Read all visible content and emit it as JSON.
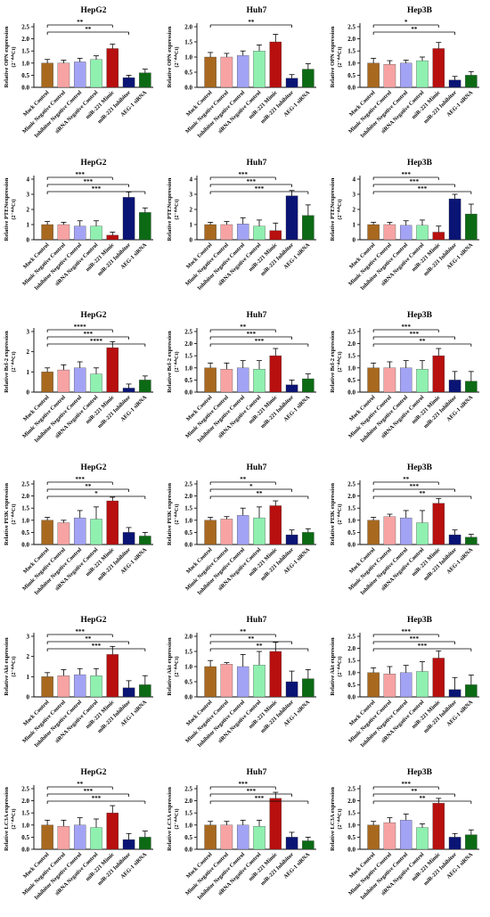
{
  "colors": [
    "#a8691f",
    "#f7a3a3",
    "#a3a3f5",
    "#8ff0b0",
    "#b80f0f",
    "#0a1475",
    "#0c6a14"
  ],
  "categories": [
    "Mock Control",
    "Mimic Negative Control",
    "Inhibitor Negative Control",
    "siRNA Negative Control",
    "miR-221 Mimic",
    "miR-221 Inhibitor",
    "AEG-1 siRNA"
  ],
  "ylabel_suffix": "(2⁻ᐞᐞCt)",
  "rows": [
    {
      "ylabel": "Relative OPN expression",
      "charts": [
        {
          "title": "HepG2",
          "yticks": [
            "0.0",
            "0.5",
            "1.0",
            "1.5",
            "2.0",
            "2.5"
          ],
          "ylim": [
            0,
            2.5
          ],
          "values": [
            1.0,
            1.0,
            1.05,
            1.15,
            1.6,
            0.4,
            0.6
          ],
          "errors": [
            0.15,
            0.12,
            0.15,
            0.15,
            0.18,
            0.1,
            0.15
          ],
          "sig": [
            {
              "from": 0,
              "to": 4,
              "label": "**"
            },
            {
              "from": 0,
              "to": 5,
              "label": "**"
            }
          ]
        },
        {
          "title": "Huh7",
          "yticks": [
            "0.0",
            "0.5",
            "1.0",
            "1.5",
            "2.0"
          ],
          "ylim": [
            0,
            2.0
          ],
          "values": [
            1.0,
            1.0,
            1.05,
            1.2,
            1.5,
            0.3,
            0.6
          ],
          "errors": [
            0.15,
            0.12,
            0.15,
            0.2,
            0.25,
            0.12,
            0.18
          ],
          "sig": [
            {
              "from": 0,
              "to": 5,
              "label": "**"
            }
          ]
        },
        {
          "title": "Hep3B",
          "yticks": [
            "0.0",
            "0.5",
            "1.0",
            "1.5",
            "2.0",
            "2.5"
          ],
          "ylim": [
            0,
            2.5
          ],
          "values": [
            1.0,
            0.95,
            1.0,
            1.1,
            1.6,
            0.3,
            0.5
          ],
          "errors": [
            0.2,
            0.15,
            0.12,
            0.15,
            0.25,
            0.15,
            0.15
          ],
          "sig": [
            {
              "from": 0,
              "to": 4,
              "label": "*"
            },
            {
              "from": 0,
              "to": 5,
              "label": "**"
            }
          ]
        }
      ]
    },
    {
      "ylabel": "Relative PTENexpression",
      "charts": [
        {
          "title": "HepG2",
          "yticks": [
            "0",
            "1",
            "2",
            "3",
            "4"
          ],
          "ylim": [
            0,
            4
          ],
          "values": [
            1.0,
            1.0,
            0.9,
            0.9,
            0.3,
            2.8,
            1.8
          ],
          "errors": [
            0.2,
            0.15,
            0.35,
            0.35,
            0.2,
            0.35,
            0.3
          ],
          "sig": [
            {
              "from": 0,
              "to": 4,
              "label": "***"
            },
            {
              "from": 0,
              "to": 5,
              "label": "***"
            },
            {
              "from": 0,
              "to": 6,
              "label": "***"
            }
          ]
        },
        {
          "title": "Huh7",
          "yticks": [
            "0",
            "1",
            "2",
            "3",
            "4"
          ],
          "ylim": [
            0,
            4
          ],
          "values": [
            1.0,
            1.0,
            1.05,
            0.9,
            0.6,
            2.9,
            1.6
          ],
          "errors": [
            0.15,
            0.2,
            0.4,
            0.4,
            0.5,
            0.35,
            0.7
          ],
          "sig": [
            {
              "from": 0,
              "to": 4,
              "label": "***"
            },
            {
              "from": 0,
              "to": 5,
              "label": "***"
            },
            {
              "from": 0,
              "to": 6,
              "label": "***"
            }
          ]
        },
        {
          "title": "Hep3B",
          "yticks": [
            "0",
            "1",
            "2",
            "3",
            "4"
          ],
          "ylim": [
            0,
            4
          ],
          "values": [
            1.0,
            1.0,
            0.95,
            0.95,
            0.5,
            2.7,
            1.7
          ],
          "errors": [
            0.15,
            0.15,
            0.3,
            0.35,
            0.4,
            0.3,
            0.65
          ],
          "sig": [
            {
              "from": 0,
              "to": 4,
              "label": "***"
            },
            {
              "from": 0,
              "to": 5,
              "label": "***"
            },
            {
              "from": 0,
              "to": 6,
              "label": "***"
            }
          ]
        }
      ]
    },
    {
      "ylabel": "Relative Bcl-2 expression",
      "charts": [
        {
          "title": "HepG2",
          "yticks": [
            "0",
            "1",
            "2",
            "3"
          ],
          "ylim": [
            0,
            3
          ],
          "values": [
            1.0,
            1.1,
            1.2,
            0.9,
            2.2,
            0.2,
            0.6
          ],
          "errors": [
            0.2,
            0.25,
            0.3,
            0.3,
            0.3,
            0.2,
            0.2
          ],
          "sig": [
            {
              "from": 0,
              "to": 4,
              "label": "****"
            },
            {
              "from": 0,
              "to": 5,
              "label": "***"
            },
            {
              "from": 0,
              "to": 6,
              "label": "****"
            }
          ]
        },
        {
          "title": "Huh7",
          "yticks": [
            "0.0",
            "0.5",
            "1.0",
            "1.5",
            "2.0",
            "2.5"
          ],
          "ylim": [
            0,
            2.5
          ],
          "values": [
            1.0,
            0.95,
            1.0,
            0.95,
            1.5,
            0.3,
            0.55
          ],
          "errors": [
            0.2,
            0.25,
            0.3,
            0.35,
            0.3,
            0.2,
            0.2
          ],
          "sig": [
            {
              "from": 0,
              "to": 4,
              "label": "**"
            },
            {
              "from": 0,
              "to": 5,
              "label": "***"
            },
            {
              "from": 0,
              "to": 6,
              "label": "***"
            }
          ]
        },
        {
          "title": "Hep3B",
          "yticks": [
            "0.0",
            "0.5",
            "1.0",
            "1.5",
            "2.0",
            "2.5"
          ],
          "ylim": [
            0,
            2.5
          ],
          "values": [
            1.0,
            1.0,
            1.0,
            0.95,
            1.5,
            0.5,
            0.45
          ],
          "errors": [
            0.2,
            0.25,
            0.3,
            0.35,
            0.3,
            0.35,
            0.4
          ],
          "sig": [
            {
              "from": 0,
              "to": 4,
              "label": "***"
            },
            {
              "from": 0,
              "to": 5,
              "label": "***"
            },
            {
              "from": 0,
              "to": 6,
              "label": "**"
            }
          ]
        }
      ]
    },
    {
      "ylabel": "Relative PI3K expression",
      "charts": [
        {
          "title": "HepG2",
          "yticks": [
            "0.0",
            "0.5",
            "1.0",
            "1.5",
            "2.0",
            "2.5"
          ],
          "ylim": [
            0,
            2.5
          ],
          "values": [
            1.0,
            0.9,
            1.1,
            1.05,
            1.8,
            0.5,
            0.35
          ],
          "errors": [
            0.12,
            0.1,
            0.3,
            0.5,
            0.15,
            0.2,
            0.15
          ],
          "sig": [
            {
              "from": 0,
              "to": 4,
              "label": "***"
            },
            {
              "from": 0,
              "to": 5,
              "label": "**"
            },
            {
              "from": 0,
              "to": 6,
              "label": "*"
            }
          ]
        },
        {
          "title": "Huh7",
          "yticks": [
            "0.0",
            "0.5",
            "1.0",
            "1.5",
            "2.0",
            "2.5"
          ],
          "ylim": [
            0,
            2.5
          ],
          "values": [
            1.0,
            1.05,
            1.2,
            1.1,
            1.6,
            0.4,
            0.5
          ],
          "errors": [
            0.12,
            0.1,
            0.3,
            0.45,
            0.2,
            0.2,
            0.15
          ],
          "sig": [
            {
              "from": 0,
              "to": 4,
              "label": "**"
            },
            {
              "from": 0,
              "to": 5,
              "label": "*"
            },
            {
              "from": 0,
              "to": 6,
              "label": "**"
            }
          ]
        },
        {
          "title": "Hep3B",
          "yticks": [
            "0.0",
            "0.5",
            "1.0",
            "1.5",
            "2.0",
            "2.5"
          ],
          "ylim": [
            0,
            2.5
          ],
          "values": [
            1.0,
            1.15,
            1.1,
            0.9,
            1.7,
            0.4,
            0.3
          ],
          "errors": [
            0.12,
            0.1,
            0.3,
            0.5,
            0.2,
            0.2,
            0.12
          ],
          "sig": [
            {
              "from": 0,
              "to": 4,
              "label": "**"
            },
            {
              "from": 0,
              "to": 5,
              "label": "***"
            },
            {
              "from": 0,
              "to": 6,
              "label": "**"
            }
          ]
        }
      ]
    },
    {
      "ylabel": "Relative Akt expression",
      "charts": [
        {
          "title": "HepG2",
          "yticks": [
            "0",
            "1",
            "2",
            "3"
          ],
          "ylim": [
            0,
            3
          ],
          "values": [
            1.0,
            1.05,
            1.1,
            1.05,
            2.1,
            0.45,
            0.6
          ],
          "errors": [
            0.2,
            0.3,
            0.3,
            0.35,
            0.4,
            0.35,
            0.45
          ],
          "sig": [
            {
              "from": 0,
              "to": 4,
              "label": "***"
            },
            {
              "from": 0,
              "to": 5,
              "label": "**"
            },
            {
              "from": 0,
              "to": 6,
              "label": "***"
            }
          ]
        },
        {
          "title": "Huh7",
          "yticks": [
            "0.0",
            "0.5",
            "1.0",
            "1.5",
            "2.0"
          ],
          "ylim": [
            0,
            2.0
          ],
          "values": [
            1.0,
            1.08,
            1.0,
            1.05,
            1.5,
            0.5,
            0.6
          ],
          "errors": [
            0.2,
            0.05,
            0.4,
            0.45,
            0.3,
            0.35,
            0.3
          ],
          "sig": [
            {
              "from": 0,
              "to": 4,
              "label": "**"
            },
            {
              "from": 0,
              "to": 5,
              "label": "**"
            },
            {
              "from": 0,
              "to": 6,
              "label": "**"
            }
          ]
        },
        {
          "title": "Hep3B",
          "yticks": [
            "0.0",
            "0.5",
            "1.0",
            "1.5",
            "2.0",
            "2.5"
          ],
          "ylim": [
            0,
            2.5
          ],
          "values": [
            1.0,
            0.95,
            1.0,
            1.05,
            1.6,
            0.3,
            0.5
          ],
          "errors": [
            0.2,
            0.3,
            0.3,
            0.4,
            0.3,
            0.5,
            0.4
          ],
          "sig": [
            {
              "from": 0,
              "to": 4,
              "label": "***"
            },
            {
              "from": 0,
              "to": 5,
              "label": "***"
            },
            {
              "from": 0,
              "to": 6,
              "label": "***"
            }
          ]
        }
      ]
    },
    {
      "ylabel": "Relative LC3A expression",
      "charts": [
        {
          "title": "HepG2",
          "yticks": [
            "0.0",
            "0.5",
            "1.0",
            "1.5",
            "2.0",
            "2.5"
          ],
          "ylim": [
            0,
            2.5
          ],
          "values": [
            1.0,
            0.95,
            1.0,
            0.9,
            1.5,
            0.4,
            0.5
          ],
          "errors": [
            0.2,
            0.25,
            0.3,
            0.35,
            0.3,
            0.25,
            0.25
          ],
          "sig": [
            {
              "from": 0,
              "to": 4,
              "label": "**"
            },
            {
              "from": 0,
              "to": 5,
              "label": "***"
            },
            {
              "from": 0,
              "to": 6,
              "label": "***"
            }
          ]
        },
        {
          "title": "Huh7",
          "yticks": [
            "0.0",
            "0.5",
            "1.0",
            "1.5",
            "2.0",
            "2.5"
          ],
          "ylim": [
            0,
            2.5
          ],
          "values": [
            1.0,
            1.0,
            1.0,
            0.95,
            2.1,
            0.5,
            0.35
          ],
          "errors": [
            0.15,
            0.15,
            0.2,
            0.25,
            0.25,
            0.2,
            0.15
          ],
          "sig": [
            {
              "from": 0,
              "to": 4,
              "label": "***"
            },
            {
              "from": 0,
              "to": 5,
              "label": "***"
            },
            {
              "from": 0,
              "to": 6,
              "label": "***"
            }
          ]
        },
        {
          "title": "Hep3B",
          "yticks": [
            "0.0",
            "0.5",
            "1.0",
            "1.5",
            "2.0",
            "2.5"
          ],
          "ylim": [
            0,
            2.5
          ],
          "values": [
            1.0,
            1.1,
            1.2,
            0.9,
            1.9,
            0.5,
            0.6
          ],
          "errors": [
            0.15,
            0.2,
            0.25,
            0.15,
            0.2,
            0.15,
            0.2
          ],
          "sig": [
            {
              "from": 0,
              "to": 4,
              "label": "***"
            },
            {
              "from": 0,
              "to": 5,
              "label": "**"
            },
            {
              "from": 0,
              "to": 6,
              "label": "**"
            }
          ]
        }
      ]
    }
  ],
  "chart_data": {
    "type": "bar",
    "note_layout": "6 rows x 3 columns of bar charts with error bars and significance brackets"
  }
}
